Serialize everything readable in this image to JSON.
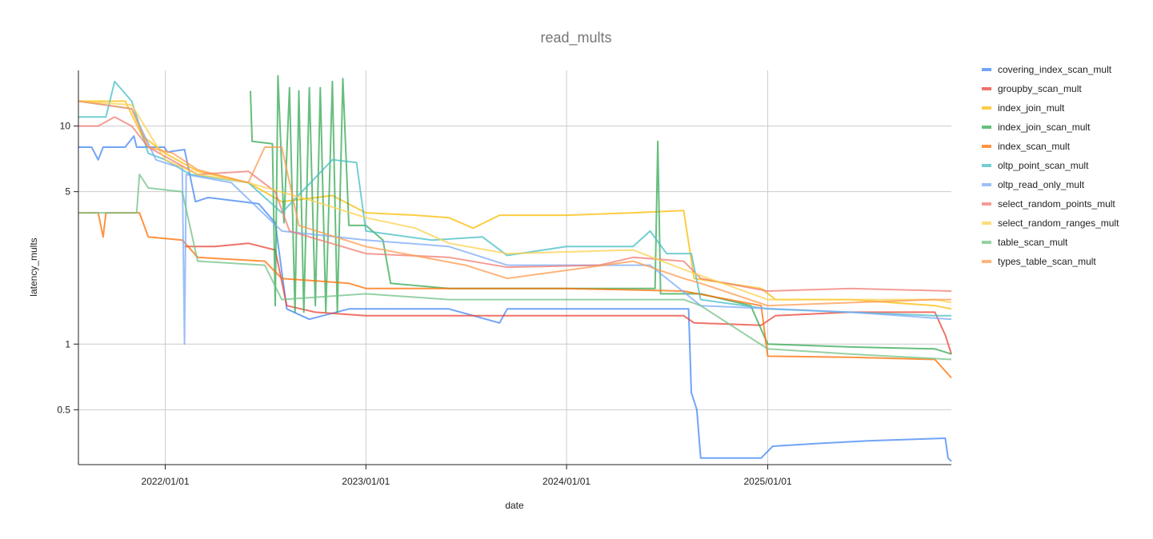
{
  "chart_data": {
    "type": "line",
    "title": "read_mults",
    "xlabel": "date",
    "ylabel": "latency_mults",
    "y_scale": "log",
    "ylim": [
      0.28,
      18
    ],
    "xlim": [
      "2021-07-27",
      "2025-12-01"
    ],
    "y_ticks": [
      0.5,
      1,
      5,
      10
    ],
    "y_tick_labels": [
      "0.5",
      "1",
      "5",
      "10"
    ],
    "x_ticks": [
      "2022-01-01",
      "2023-01-01",
      "2024-01-01",
      "2025-01-01"
    ],
    "x_tick_labels": [
      "2022/01/01",
      "2023/01/01",
      "2024/01/01",
      "2025/01/01"
    ],
    "grid": true,
    "legend_position": "right",
    "series": [
      {
        "name": "covering_index_scan_mult",
        "color": "#4285f4",
        "points": [
          [
            "2021-07-27",
            8
          ],
          [
            "2021-08-20",
            8
          ],
          [
            "2021-09-01",
            7
          ],
          [
            "2021-09-10",
            8
          ],
          [
            "2021-10-20",
            8
          ],
          [
            "2021-11-05",
            9
          ],
          [
            "2021-11-10",
            8
          ],
          [
            "2021-12-30",
            8
          ],
          [
            "2022-01-05",
            7.6
          ],
          [
            "2022-02-05",
            7.8
          ],
          [
            "2022-02-25",
            4.5
          ],
          [
            "2022-03-20",
            4.7
          ],
          [
            "2022-06-20",
            4.4
          ],
          [
            "2022-07-20",
            3.6
          ],
          [
            "2022-08-10",
            1.45
          ],
          [
            "2022-09-20",
            1.3
          ],
          [
            "2022-12-01",
            1.45
          ],
          [
            "2023-06-01",
            1.45
          ],
          [
            "2023-09-01",
            1.25
          ],
          [
            "2023-09-15",
            1.45
          ],
          [
            "2024-08-10",
            1.45
          ],
          [
            "2024-08-15",
            0.6
          ],
          [
            "2024-08-25",
            0.5
          ],
          [
            "2024-09-01",
            0.3
          ],
          [
            "2024-12-20",
            0.3
          ],
          [
            "2025-01-10",
            0.34
          ],
          [
            "2025-04-01",
            0.35
          ],
          [
            "2025-07-01",
            0.36
          ],
          [
            "2025-11-20",
            0.37
          ],
          [
            "2025-11-25",
            0.3
          ],
          [
            "2025-12-01",
            0.29
          ]
        ]
      },
      {
        "name": "groupby_scan_mult",
        "color": "#ea4335",
        "points": [
          [
            "2022-02-05",
            2.8
          ],
          [
            "2022-04-01",
            2.8
          ],
          [
            "2022-06-01",
            2.9
          ],
          [
            "2022-07-20",
            2.7
          ],
          [
            "2022-08-10",
            1.5
          ],
          [
            "2022-10-01",
            1.4
          ],
          [
            "2023-01-01",
            1.35
          ],
          [
            "2023-06-01",
            1.35
          ],
          [
            "2024-01-01",
            1.35
          ],
          [
            "2024-08-01",
            1.35
          ],
          [
            "2024-08-20",
            1.25
          ],
          [
            "2024-12-20",
            1.22
          ],
          [
            "2025-01-15",
            1.35
          ],
          [
            "2025-06-01",
            1.4
          ],
          [
            "2025-11-01",
            1.4
          ],
          [
            "2025-11-20",
            1.1
          ],
          [
            "2025-12-01",
            0.9
          ]
        ]
      },
      {
        "name": "index_join_mult",
        "color": "#fbbc04",
        "points": [
          [
            "2021-07-27",
            13
          ],
          [
            "2021-10-20",
            13
          ],
          [
            "2021-11-20",
            9
          ],
          [
            "2022-01-01",
            7.5
          ],
          [
            "2022-03-01",
            6.2
          ],
          [
            "2022-06-01",
            5.5
          ],
          [
            "2022-08-01",
            4.5
          ],
          [
            "2022-11-01",
            4.8
          ],
          [
            "2023-01-01",
            4
          ],
          [
            "2023-04-01",
            3.9
          ],
          [
            "2023-06-01",
            3.8
          ],
          [
            "2023-07-15",
            3.4
          ],
          [
            "2023-09-01",
            3.9
          ],
          [
            "2024-01-01",
            3.9
          ],
          [
            "2024-05-01",
            4
          ],
          [
            "2024-08-01",
            4.1
          ],
          [
            "2024-08-20",
            2.0
          ],
          [
            "2024-12-20",
            1.8
          ],
          [
            "2025-01-15",
            1.6
          ],
          [
            "2025-06-01",
            1.6
          ],
          [
            "2025-11-01",
            1.5
          ],
          [
            "2025-12-01",
            1.45
          ]
        ]
      },
      {
        "name": "index_join_scan_mult",
        "color": "#34a853",
        "points": [
          [
            "2022-06-05",
            14.5
          ],
          [
            "2022-06-08",
            8.5
          ],
          [
            "2022-07-15",
            8.3
          ],
          [
            "2022-07-20",
            1.5
          ],
          [
            "2022-07-25",
            17
          ],
          [
            "2022-08-05",
            3.6
          ],
          [
            "2022-08-15",
            15
          ],
          [
            "2022-08-25",
            1.4
          ],
          [
            "2022-09-01",
            14.5
          ],
          [
            "2022-09-10",
            1.4
          ],
          [
            "2022-09-20",
            15
          ],
          [
            "2022-10-01",
            1.5
          ],
          [
            "2022-10-10",
            15
          ],
          [
            "2022-10-20",
            1.4
          ],
          [
            "2022-11-01",
            16
          ],
          [
            "2022-11-10",
            1.4
          ],
          [
            "2022-11-20",
            16.5
          ],
          [
            "2022-12-01",
            3.5
          ],
          [
            "2023-01-01",
            3.5
          ],
          [
            "2023-02-01",
            3.0
          ],
          [
            "2023-02-15",
            1.9
          ],
          [
            "2023-06-01",
            1.8
          ],
          [
            "2024-01-01",
            1.8
          ],
          [
            "2024-06-10",
            1.8
          ],
          [
            "2024-06-15",
            8.5
          ],
          [
            "2024-06-20",
            1.7
          ],
          [
            "2024-09-01",
            1.7
          ],
          [
            "2024-12-01",
            1.5
          ],
          [
            "2025-01-01",
            1.0
          ],
          [
            "2025-06-01",
            0.97
          ],
          [
            "2025-11-01",
            0.95
          ],
          [
            "2025-12-01",
            0.9
          ]
        ]
      },
      {
        "name": "index_scan_mult",
        "color": "#ff6d01",
        "points": [
          [
            "2021-07-27",
            4
          ],
          [
            "2021-09-01",
            4
          ],
          [
            "2021-09-10",
            3.1
          ],
          [
            "2021-09-15",
            4
          ],
          [
            "2021-11-15",
            4
          ],
          [
            "2021-12-01",
            3.1
          ],
          [
            "2022-02-01",
            3.0
          ],
          [
            "2022-03-01",
            2.5
          ],
          [
            "2022-07-01",
            2.4
          ],
          [
            "2022-08-01",
            2.0
          ],
          [
            "2022-12-01",
            1.9
          ],
          [
            "2023-01-01",
            1.8
          ],
          [
            "2024-01-01",
            1.8
          ],
          [
            "2024-08-01",
            1.75
          ],
          [
            "2024-12-20",
            1.5
          ],
          [
            "2025-01-01",
            0.88
          ],
          [
            "2025-06-01",
            0.87
          ],
          [
            "2025-11-01",
            0.85
          ],
          [
            "2025-12-01",
            0.7
          ]
        ]
      },
      {
        "name": "oltp_point_scan_mult",
        "color": "#46bdc6",
        "points": [
          [
            "2021-07-27",
            11
          ],
          [
            "2021-09-15",
            11
          ],
          [
            "2021-10-01",
            16
          ],
          [
            "2021-11-01",
            13
          ],
          [
            "2021-12-01",
            7.5
          ],
          [
            "2022-01-01",
            7
          ],
          [
            "2022-02-15",
            6
          ],
          [
            "2022-06-01",
            5.5
          ],
          [
            "2022-08-01",
            4.0
          ],
          [
            "2022-11-01",
            7
          ],
          [
            "2022-12-15",
            6.8
          ],
          [
            "2023-01-01",
            3.3
          ],
          [
            "2023-05-01",
            3.0
          ],
          [
            "2023-08-01",
            3.1
          ],
          [
            "2023-09-15",
            2.55
          ],
          [
            "2024-01-01",
            2.8
          ],
          [
            "2024-05-01",
            2.8
          ],
          [
            "2024-06-01",
            3.3
          ],
          [
            "2024-07-01",
            2.6
          ],
          [
            "2024-08-15",
            2.6
          ],
          [
            "2024-09-01",
            1.6
          ],
          [
            "2025-01-01",
            1.45
          ],
          [
            "2025-11-01",
            1.35
          ],
          [
            "2025-12-01",
            1.35
          ]
        ]
      },
      {
        "name": "oltp_read_only_mult",
        "color": "#7baaf7",
        "points": [
          [
            "2021-07-27",
            13
          ],
          [
            "2021-11-01",
            12
          ],
          [
            "2021-12-15",
            7
          ],
          [
            "2022-01-15",
            6.6
          ],
          [
            "2022-02-01",
            6.5
          ],
          [
            "2022-02-05",
            1.0
          ],
          [
            "2022-02-08",
            6
          ],
          [
            "2022-05-01",
            5.5
          ],
          [
            "2022-08-01",
            3.3
          ],
          [
            "2023-01-01",
            3.0
          ],
          [
            "2023-06-01",
            2.8
          ],
          [
            "2023-09-15",
            2.3
          ],
          [
            "2024-06-01",
            2.3
          ],
          [
            "2024-09-01",
            1.5
          ],
          [
            "2025-06-01",
            1.4
          ],
          [
            "2025-12-01",
            1.3
          ]
        ]
      },
      {
        "name": "select_random_points_mult",
        "color": "#f07b72",
        "points": [
          [
            "2021-07-27",
            10
          ],
          [
            "2021-09-01",
            10
          ],
          [
            "2021-10-01",
            11
          ],
          [
            "2021-11-01",
            10
          ],
          [
            "2021-12-01",
            8
          ],
          [
            "2022-03-01",
            6
          ],
          [
            "2022-06-01",
            6.2
          ],
          [
            "2022-07-20",
            5
          ],
          [
            "2022-08-15",
            3.3
          ],
          [
            "2023-01-01",
            2.6
          ],
          [
            "2023-06-01",
            2.5
          ],
          [
            "2023-09-15",
            2.25
          ],
          [
            "2024-03-01",
            2.3
          ],
          [
            "2024-05-01",
            2.5
          ],
          [
            "2024-08-01",
            2.4
          ],
          [
            "2024-09-01",
            2.0
          ],
          [
            "2025-01-01",
            1.75
          ],
          [
            "2025-06-01",
            1.8
          ],
          [
            "2025-12-01",
            1.75
          ]
        ]
      },
      {
        "name": "select_random_ranges_mult",
        "color": "#fcd04f",
        "points": [
          [
            "2021-07-27",
            13
          ],
          [
            "2021-11-01",
            12.5
          ],
          [
            "2022-01-01",
            7
          ],
          [
            "2022-03-01",
            6
          ],
          [
            "2022-06-01",
            5.5
          ],
          [
            "2022-10-01",
            4.5
          ],
          [
            "2023-01-01",
            3.8
          ],
          [
            "2023-04-01",
            3.4
          ],
          [
            "2023-06-01",
            2.9
          ],
          [
            "2023-09-15",
            2.6
          ],
          [
            "2024-05-01",
            2.7
          ],
          [
            "2024-08-01",
            2.2
          ],
          [
            "2025-01-01",
            1.6
          ],
          [
            "2025-11-01",
            1.6
          ],
          [
            "2025-12-01",
            1.55
          ]
        ]
      },
      {
        "name": "table_scan_mult",
        "color": "#71c287",
        "points": [
          [
            "2021-07-27",
            4
          ],
          [
            "2021-11-10",
            4
          ],
          [
            "2021-11-15",
            6
          ],
          [
            "2021-12-01",
            5.2
          ],
          [
            "2022-02-01",
            5.0
          ],
          [
            "2022-03-01",
            2.4
          ],
          [
            "2022-07-01",
            2.3
          ],
          [
            "2022-08-01",
            1.6
          ],
          [
            "2023-01-01",
            1.7
          ],
          [
            "2023-06-01",
            1.6
          ],
          [
            "2024-08-01",
            1.6
          ],
          [
            "2024-09-01",
            1.5
          ],
          [
            "2025-01-01",
            0.95
          ],
          [
            "2025-06-01",
            0.9
          ],
          [
            "2025-12-01",
            0.85
          ]
        ]
      },
      {
        "name": "types_table_scan_mult",
        "color": "#ff994d",
        "points": [
          [
            "2021-07-27",
            13
          ],
          [
            "2021-11-01",
            12
          ],
          [
            "2021-12-01",
            8
          ],
          [
            "2022-01-15",
            7.5
          ],
          [
            "2022-03-01",
            6.3
          ],
          [
            "2022-06-01",
            5.5
          ],
          [
            "2022-07-01",
            8
          ],
          [
            "2022-08-01",
            8
          ],
          [
            "2022-09-01",
            3.5
          ],
          [
            "2023-01-01",
            2.8
          ],
          [
            "2023-07-01",
            2.3
          ],
          [
            "2023-09-15",
            2.0
          ],
          [
            "2024-05-01",
            2.4
          ],
          [
            "2024-08-01",
            2.0
          ],
          [
            "2024-09-01",
            1.9
          ],
          [
            "2025-01-01",
            1.5
          ],
          [
            "2025-11-01",
            1.6
          ],
          [
            "2025-12-01",
            1.6
          ]
        ]
      }
    ]
  }
}
